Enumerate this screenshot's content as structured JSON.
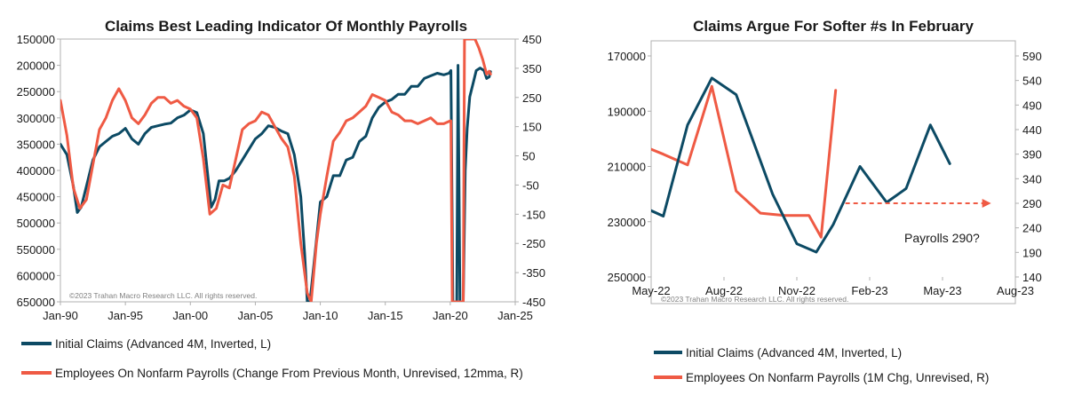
{
  "colors": {
    "claims": "#0c4a64",
    "payrolls": "#ef5a44",
    "axis": "#b0b0b0",
    "text": "#1a1a1a"
  },
  "chart_data": [
    {
      "type": "line",
      "title": "Claims Best Leading Indicator Of Monthly Payrolls",
      "copyright": "©2023 Trahan Macro Research LLC. All rights reserved.",
      "x_tick_labels": [
        "Jan-90",
        "Jan-95",
        "Jan-00",
        "Jan-05",
        "Jan-10",
        "Jan-15",
        "Jan-20",
        "Jan-25"
      ],
      "x_range": [
        1990,
        2025
      ],
      "y_left": {
        "range": [
          150000,
          650000
        ],
        "inverted": true,
        "ticks": [
          150000,
          200000,
          250000,
          300000,
          350000,
          400000,
          450000,
          500000,
          550000,
          600000,
          650000
        ]
      },
      "y_right": {
        "range": [
          -450,
          450
        ],
        "ticks": [
          450,
          350,
          250,
          150,
          50,
          -50,
          -150,
          -250,
          -350,
          -450
        ]
      },
      "series": [
        {
          "name": "Initial Claims (Advanced 4M, Inverted, L)",
          "axis": "left",
          "x": [
            1990,
            1990.5,
            1991,
            1991.3,
            1991.6,
            1992,
            1992.5,
            1993,
            1993.5,
            1994,
            1994.5,
            1995,
            1995.5,
            1996,
            1996.5,
            1997,
            1997.5,
            1998,
            1998.5,
            1999,
            1999.5,
            2000,
            2000.5,
            2001,
            2001.3,
            2001.6,
            2001.9,
            2002.2,
            2002.6,
            2003,
            2003.5,
            2004,
            2004.5,
            2005,
            2005.5,
            2006,
            2006.5,
            2007,
            2007.5,
            2008,
            2008.5,
            2008.8,
            2009,
            2009.2,
            2009.5,
            2010,
            2010.5,
            2011,
            2011.5,
            2012,
            2012.5,
            2013,
            2013.5,
            2014,
            2014.5,
            2015,
            2015.5,
            2016,
            2016.5,
            2017,
            2017.5,
            2018,
            2018.5,
            2019,
            2019.5,
            2019.9,
            2020.05,
            2020.2,
            2020.3,
            2020.5,
            2020.6,
            2020.75,
            2021.0,
            2021.15,
            2021.3,
            2021.5,
            2021.8,
            2022.0,
            2022.3,
            2022.6,
            2022.8,
            2023.0,
            2023.1
          ],
          "values": [
            350000,
            370000,
            430000,
            480000,
            470000,
            430000,
            380000,
            355000,
            345000,
            335000,
            330000,
            320000,
            340000,
            350000,
            330000,
            318000,
            315000,
            312000,
            310000,
            300000,
            295000,
            285000,
            290000,
            330000,
            400000,
            470000,
            455000,
            420000,
            420000,
            415000,
            400000,
            380000,
            360000,
            340000,
            330000,
            315000,
            318000,
            325000,
            330000,
            370000,
            450000,
            560000,
            650000,
            650000,
            580000,
            460000,
            450000,
            410000,
            410000,
            380000,
            375000,
            345000,
            335000,
            300000,
            280000,
            270000,
            265000,
            255000,
            255000,
            240000,
            240000,
            225000,
            220000,
            215000,
            218000,
            215000,
            210000,
            650000,
            650000,
            650000,
            200000,
            650000,
            650000,
            400000,
            320000,
            260000,
            230000,
            210000,
            205000,
            210000,
            225000,
            222000,
            212000
          ]
        },
        {
          "name": "Employees On Nonfarm Payrolls (Change From Previous Month, Unrevised, 12mma, R)",
          "axis": "right",
          "x": [
            1990,
            1990.5,
            1991,
            1991.5,
            1992,
            1992.5,
            1993,
            1993.5,
            1994,
            1994.5,
            1995,
            1995.5,
            1996,
            1996.5,
            1997,
            1997.5,
            1998,
            1998.5,
            1999,
            1999.5,
            2000,
            2000.5,
            2001,
            2001.5,
            2002,
            2002.5,
            2003,
            2003.5,
            2004,
            2004.5,
            2005,
            2005.5,
            2006,
            2006.5,
            2007,
            2007.5,
            2008,
            2008.5,
            2009,
            2009.3,
            2009.7,
            2010,
            2010.5,
            2011,
            2011.5,
            2012,
            2012.5,
            2013,
            2013.5,
            2014,
            2014.5,
            2015,
            2015.5,
            2016,
            2016.5,
            2017,
            2017.5,
            2018,
            2018.5,
            2019,
            2019.5,
            2020.0,
            2020.05,
            2020.15,
            2020.25,
            2020.4,
            2020.8,
            2021.0,
            2021.1,
            2021.3,
            2021.6,
            2021.9,
            2022.2,
            2022.5,
            2022.8,
            2023.0,
            2023.1
          ],
          "values": [
            240,
            120,
            -60,
            -130,
            -100,
            20,
            140,
            180,
            240,
            280,
            240,
            180,
            160,
            190,
            230,
            250,
            250,
            230,
            240,
            220,
            210,
            180,
            40,
            -150,
            -130,
            -50,
            -60,
            40,
            140,
            160,
            170,
            200,
            190,
            150,
            110,
            80,
            -20,
            -250,
            -420,
            -450,
            -250,
            -150,
            -20,
            100,
            130,
            170,
            180,
            200,
            220,
            260,
            250,
            240,
            200,
            190,
            170,
            170,
            160,
            170,
            180,
            160,
            160,
            170,
            170,
            -450,
            -450,
            -450,
            -450,
            -450,
            450,
            450,
            450,
            450,
            420,
            380,
            330,
            340,
            330
          ]
        }
      ]
    },
    {
      "type": "line",
      "title": "Claims Argue For Softer #s In February",
      "copyright": "©2023 Trahan Macro Research LLC. All rights reserved.",
      "x_tick_labels": [
        "May-22",
        "Aug-22",
        "Nov-22",
        "Feb-23",
        "May-23",
        "Aug-23"
      ],
      "x_range": [
        0,
        15
      ],
      "x_unit": "months since May-22",
      "y_left": {
        "range": [
          170000,
          250000
        ],
        "inverted": true,
        "ticks": [
          170000,
          190000,
          210000,
          230000,
          250000
        ]
      },
      "y_right": {
        "range": [
          140,
          590
        ],
        "ticks": [
          590,
          540,
          490,
          440,
          390,
          340,
          290,
          240,
          190,
          140
        ]
      },
      "annotation": {
        "text": "Payrolls 290?",
        "value": 290,
        "from_month": 8,
        "to_month": 14
      },
      "series": [
        {
          "name": "Initial Claims (Advanced 4M, Inverted, L)",
          "axis": "left",
          "x": [
            0,
            0.5,
            1.5,
            2.5,
            3.5,
            5,
            6,
            6.8,
            7.5,
            8.6,
            9.7,
            10.5,
            11.5,
            12.3
          ],
          "values": [
            226000,
            228000,
            195000,
            178000,
            184000,
            220000,
            238000,
            241000,
            231000,
            210000,
            223000,
            218000,
            195000,
            209000
          ]
        },
        {
          "name": "Employees On Nonfarm Payrolls (1M Chg, Unrevised, R)",
          "axis": "right",
          "x": [
            0,
            0.5,
            1.5,
            2.5,
            3.5,
            4.5,
            5.5,
            6.5,
            7.0,
            7.6
          ],
          "values": [
            400,
            390,
            368,
            528,
            315,
            270,
            265,
            265,
            221,
            520
          ]
        }
      ]
    }
  ]
}
